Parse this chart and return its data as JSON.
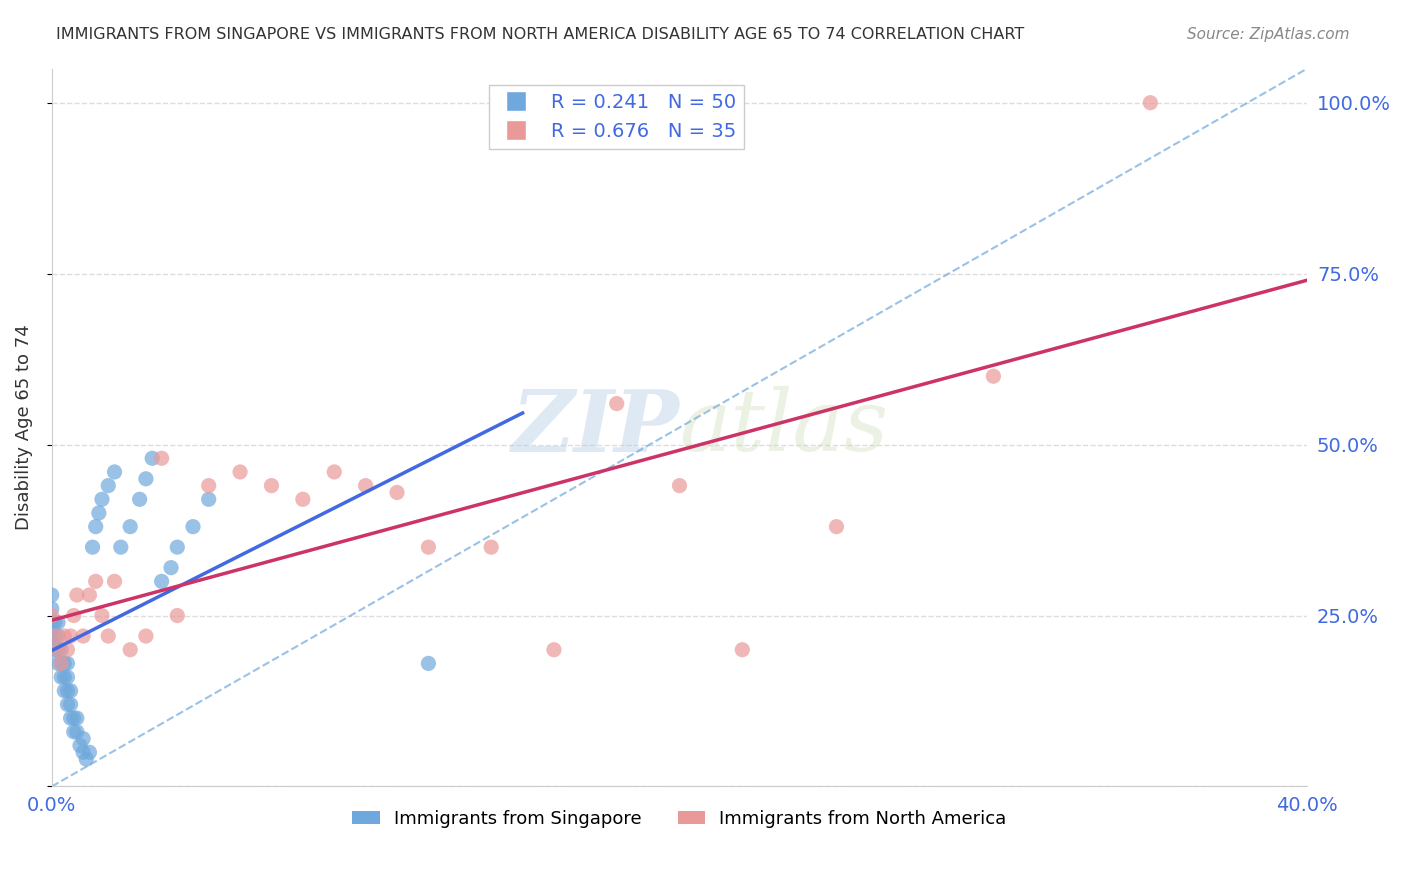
{
  "title": "IMMIGRANTS FROM SINGAPORE VS IMMIGRANTS FROM NORTH AMERICA DISABILITY AGE 65 TO 74 CORRELATION CHART",
  "source": "Source: ZipAtlas.com",
  "xlabel_color": "#4169e1",
  "ylabel": "Disability Age 65 to 74",
  "xlim": [
    0.0,
    0.4
  ],
  "ylim": [
    0.0,
    1.05
  ],
  "x_ticks": [
    0.0,
    0.05,
    0.1,
    0.15,
    0.2,
    0.25,
    0.3,
    0.35,
    0.4
  ],
  "y_ticks": [
    0.0,
    0.25,
    0.5,
    0.75,
    1.0
  ],
  "y_tick_labels": [
    "",
    "25.0%",
    "50.0%",
    "75.0%",
    "100.0%"
  ],
  "singapore_color": "#6fa8dc",
  "singapore_color_dark": "#4169e1",
  "na_color": "#ea9999",
  "na_color_dark": "#cc3366",
  "R_singapore": 0.241,
  "N_singapore": 50,
  "R_na": 0.676,
  "N_na": 35,
  "singapore_x": [
    0.0,
    0.0,
    0.0,
    0.0,
    0.001,
    0.001,
    0.001,
    0.002,
    0.002,
    0.002,
    0.002,
    0.003,
    0.003,
    0.003,
    0.004,
    0.004,
    0.004,
    0.005,
    0.005,
    0.005,
    0.005,
    0.006,
    0.006,
    0.006,
    0.007,
    0.007,
    0.008,
    0.008,
    0.009,
    0.01,
    0.01,
    0.011,
    0.012,
    0.013,
    0.014,
    0.015,
    0.016,
    0.018,
    0.02,
    0.022,
    0.025,
    0.028,
    0.03,
    0.032,
    0.035,
    0.038,
    0.04,
    0.045,
    0.05,
    0.12
  ],
  "singapore_y": [
    0.22,
    0.24,
    0.26,
    0.28,
    0.2,
    0.22,
    0.24,
    0.18,
    0.2,
    0.22,
    0.24,
    0.16,
    0.18,
    0.2,
    0.14,
    0.16,
    0.18,
    0.12,
    0.14,
    0.16,
    0.18,
    0.1,
    0.12,
    0.14,
    0.08,
    0.1,
    0.08,
    0.1,
    0.06,
    0.05,
    0.07,
    0.04,
    0.05,
    0.35,
    0.38,
    0.4,
    0.42,
    0.44,
    0.46,
    0.35,
    0.38,
    0.42,
    0.45,
    0.48,
    0.3,
    0.32,
    0.35,
    0.38,
    0.42,
    0.18
  ],
  "na_x": [
    0.0,
    0.001,
    0.002,
    0.003,
    0.004,
    0.005,
    0.006,
    0.007,
    0.008,
    0.01,
    0.012,
    0.014,
    0.016,
    0.018,
    0.02,
    0.025,
    0.03,
    0.035,
    0.04,
    0.05,
    0.06,
    0.07,
    0.08,
    0.09,
    0.1,
    0.11,
    0.12,
    0.14,
    0.16,
    0.18,
    0.2,
    0.22,
    0.25,
    0.3,
    0.35
  ],
  "na_y": [
    0.25,
    0.22,
    0.2,
    0.18,
    0.22,
    0.2,
    0.22,
    0.25,
    0.28,
    0.22,
    0.28,
    0.3,
    0.25,
    0.22,
    0.3,
    0.2,
    0.22,
    0.48,
    0.25,
    0.44,
    0.46,
    0.44,
    0.42,
    0.46,
    0.44,
    0.43,
    0.35,
    0.35,
    0.2,
    0.56,
    0.44,
    0.2,
    0.38,
    0.6,
    1.0
  ],
  "watermark_zip": "ZIP",
  "watermark_atlas": "atlas",
  "background_color": "#ffffff",
  "grid_color": "#dddddd"
}
